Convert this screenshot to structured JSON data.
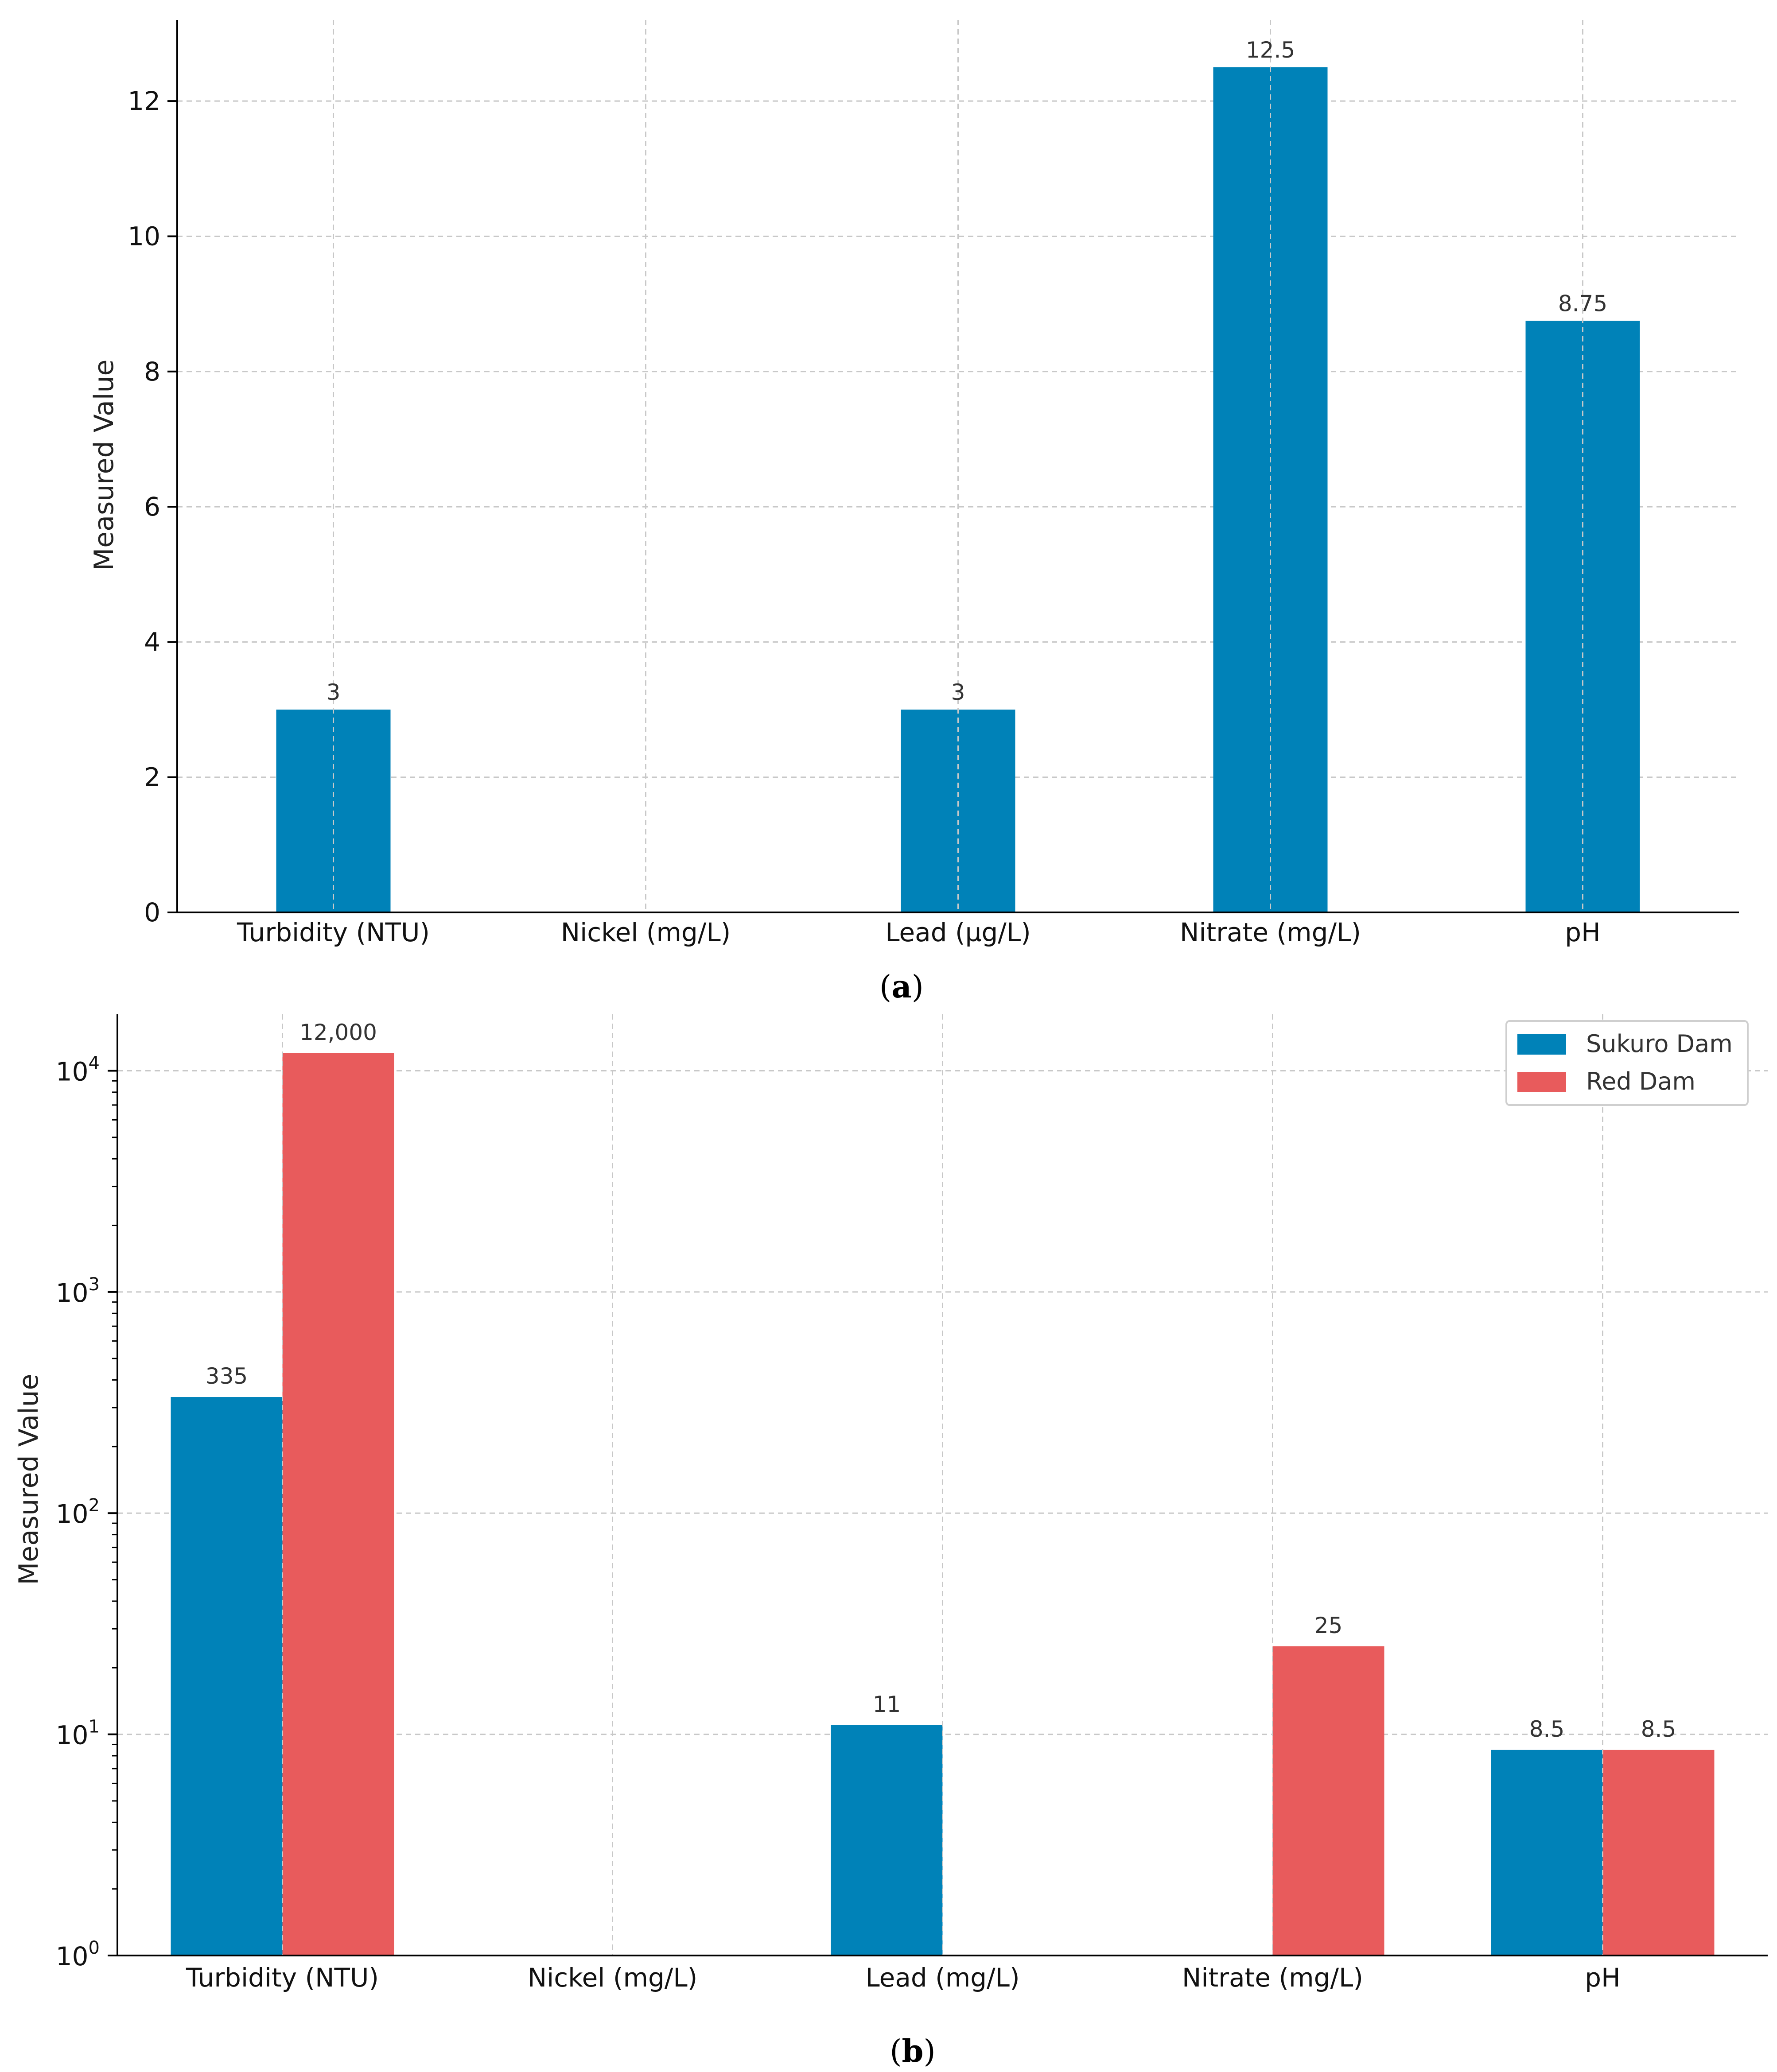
{
  "chart_data": [
    {
      "type": "bar",
      "panel_label": "a",
      "categories": [
        "Turbidity (NTU)",
        "Nickel (mg/L)",
        "Lead (µg/L)",
        "Nitrate (mg/L)",
        "pH"
      ],
      "values": [
        3,
        null,
        3,
        12.5,
        8.75
      ],
      "value_labels": [
        "3",
        "",
        "3",
        "12.5",
        "8.75"
      ],
      "ylabel": "Measured Value",
      "ylim": [
        0,
        13.2
      ],
      "yticks": [
        0,
        2,
        4,
        6,
        8,
        10,
        12
      ],
      "yscale": "linear",
      "grid": true,
      "color": "#0082b8"
    },
    {
      "type": "bar",
      "panel_label": "b",
      "categories": [
        "Turbidity (NTU)",
        "Nickel (mg/L)",
        "Lead (mg/L)",
        "Nitrate (mg/L)",
        "pH"
      ],
      "series": [
        {
          "name": "Sukuro Dam",
          "color": "#0082b8",
          "values": [
            335,
            null,
            11,
            null,
            8.5
          ],
          "value_labels": [
            "335",
            "",
            "11",
            "",
            "8.5"
          ]
        },
        {
          "name": "Red Dam",
          "color": "#e85b5c",
          "values": [
            12000,
            null,
            null,
            25,
            8.5
          ],
          "value_labels": [
            "12,000",
            "",
            "",
            "25",
            "8.5"
          ]
        }
      ],
      "ylabel": "Measured Value",
      "ylim": [
        1,
        18000
      ],
      "yticks": [
        1,
        10,
        100,
        1000,
        10000
      ],
      "ytick_labels": [
        {
          "base": "10",
          "exp": "0"
        },
        {
          "base": "10",
          "exp": "1"
        },
        {
          "base": "10",
          "exp": "2"
        },
        {
          "base": "10",
          "exp": "3"
        },
        {
          "base": "10",
          "exp": "4"
        }
      ],
      "yscale": "log",
      "grid": true,
      "legend_position": "top-right"
    }
  ]
}
